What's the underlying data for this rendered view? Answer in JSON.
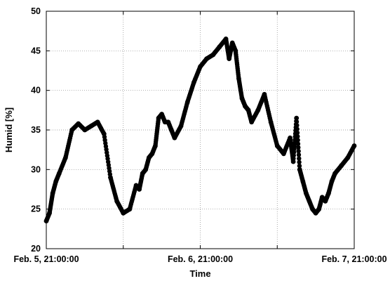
{
  "chart_data": {
    "type": "scatter",
    "xlabel": "Time",
    "ylabel": "Humid [%]",
    "x_tick_labels": [
      "Feb. 5, 21:00:00",
      "Feb. 6, 21:00:00",
      "Feb. 7, 21:00:00"
    ],
    "x_tick_hours": [
      0,
      24,
      48
    ],
    "x_minor_tick_hours": [
      12,
      36
    ],
    "x_range_hours": [
      0,
      48
    ],
    "ylim": [
      20,
      50
    ],
    "y_ticks": [
      20,
      25,
      30,
      35,
      40,
      45,
      50
    ],
    "grid": true,
    "legend": "none",
    "marker_color": "#000000",
    "series": [
      {
        "x_hours": [
          0,
          0.5,
          1,
          1.5,
          2,
          3,
          4,
          5,
          6,
          7,
          8,
          9,
          10,
          11,
          12,
          13,
          14,
          14.5,
          15,
          15.5,
          16,
          16.5,
          17,
          17.5,
          18,
          18.5,
          19,
          19.5,
          20,
          21,
          22,
          23,
          24,
          25,
          26,
          27,
          28,
          28.5,
          29,
          29.5,
          30,
          30.5,
          31,
          31.5,
          32,
          33,
          34,
          35,
          36,
          37,
          38,
          38.5,
          39,
          39.5,
          40,
          40.5,
          41,
          41.5,
          42,
          42.5,
          43,
          43.5,
          44,
          44.5,
          45,
          46,
          47,
          48
        ],
        "y": [
          23.5,
          24.5,
          27,
          28.5,
          29.5,
          31.5,
          35,
          35.8,
          35,
          35.5,
          36,
          34.5,
          29,
          26,
          24.5,
          25,
          28,
          27.5,
          29.5,
          30,
          31.5,
          32,
          33,
          36.5,
          37,
          36,
          36,
          35,
          34,
          35.5,
          38.5,
          41,
          43,
          44,
          44.5,
          45.5,
          46.5,
          44,
          46,
          45,
          41.5,
          39,
          38,
          37.5,
          36,
          37.5,
          39.5,
          36,
          33,
          32,
          34,
          31,
          36.5,
          30,
          28.5,
          27,
          26,
          25,
          24.5,
          25,
          26.5,
          26,
          27,
          28.5,
          29.5,
          30.5,
          31.5,
          33
        ]
      }
    ]
  }
}
